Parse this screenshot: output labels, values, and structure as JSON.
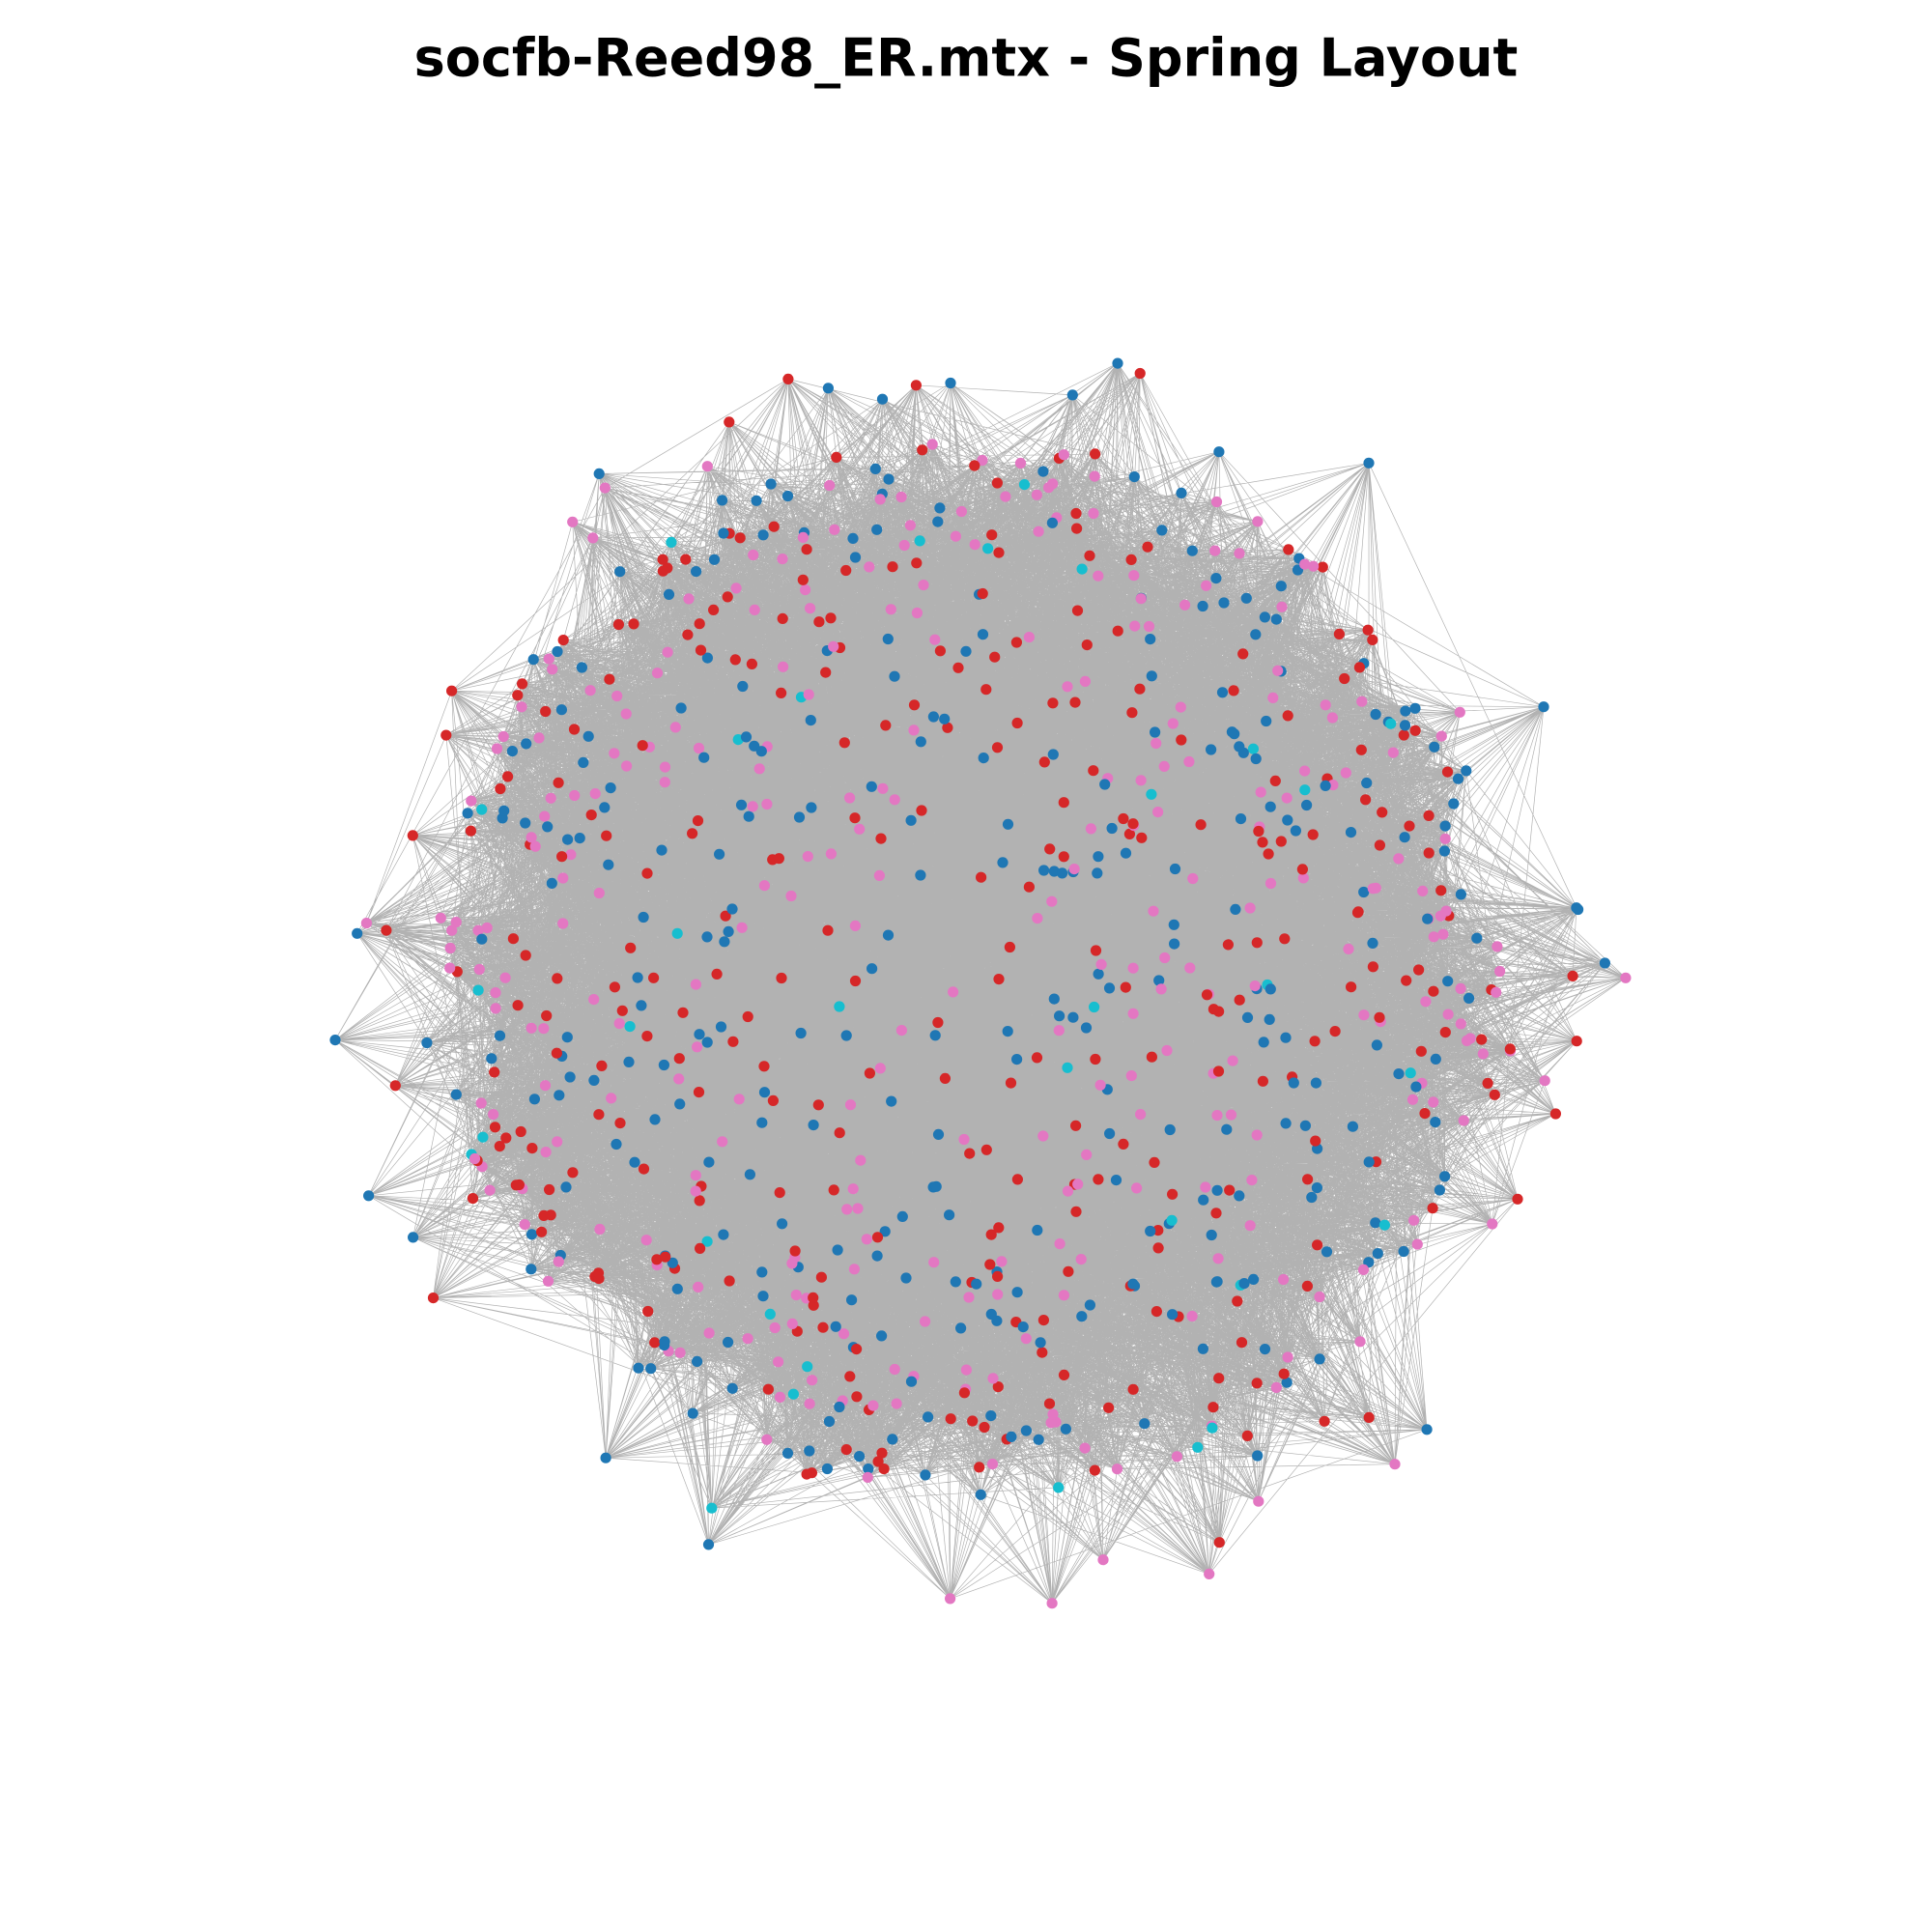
{
  "header": {
    "title": "socfb-Reed98_ER.mtx - Spring Layout"
  }
}
